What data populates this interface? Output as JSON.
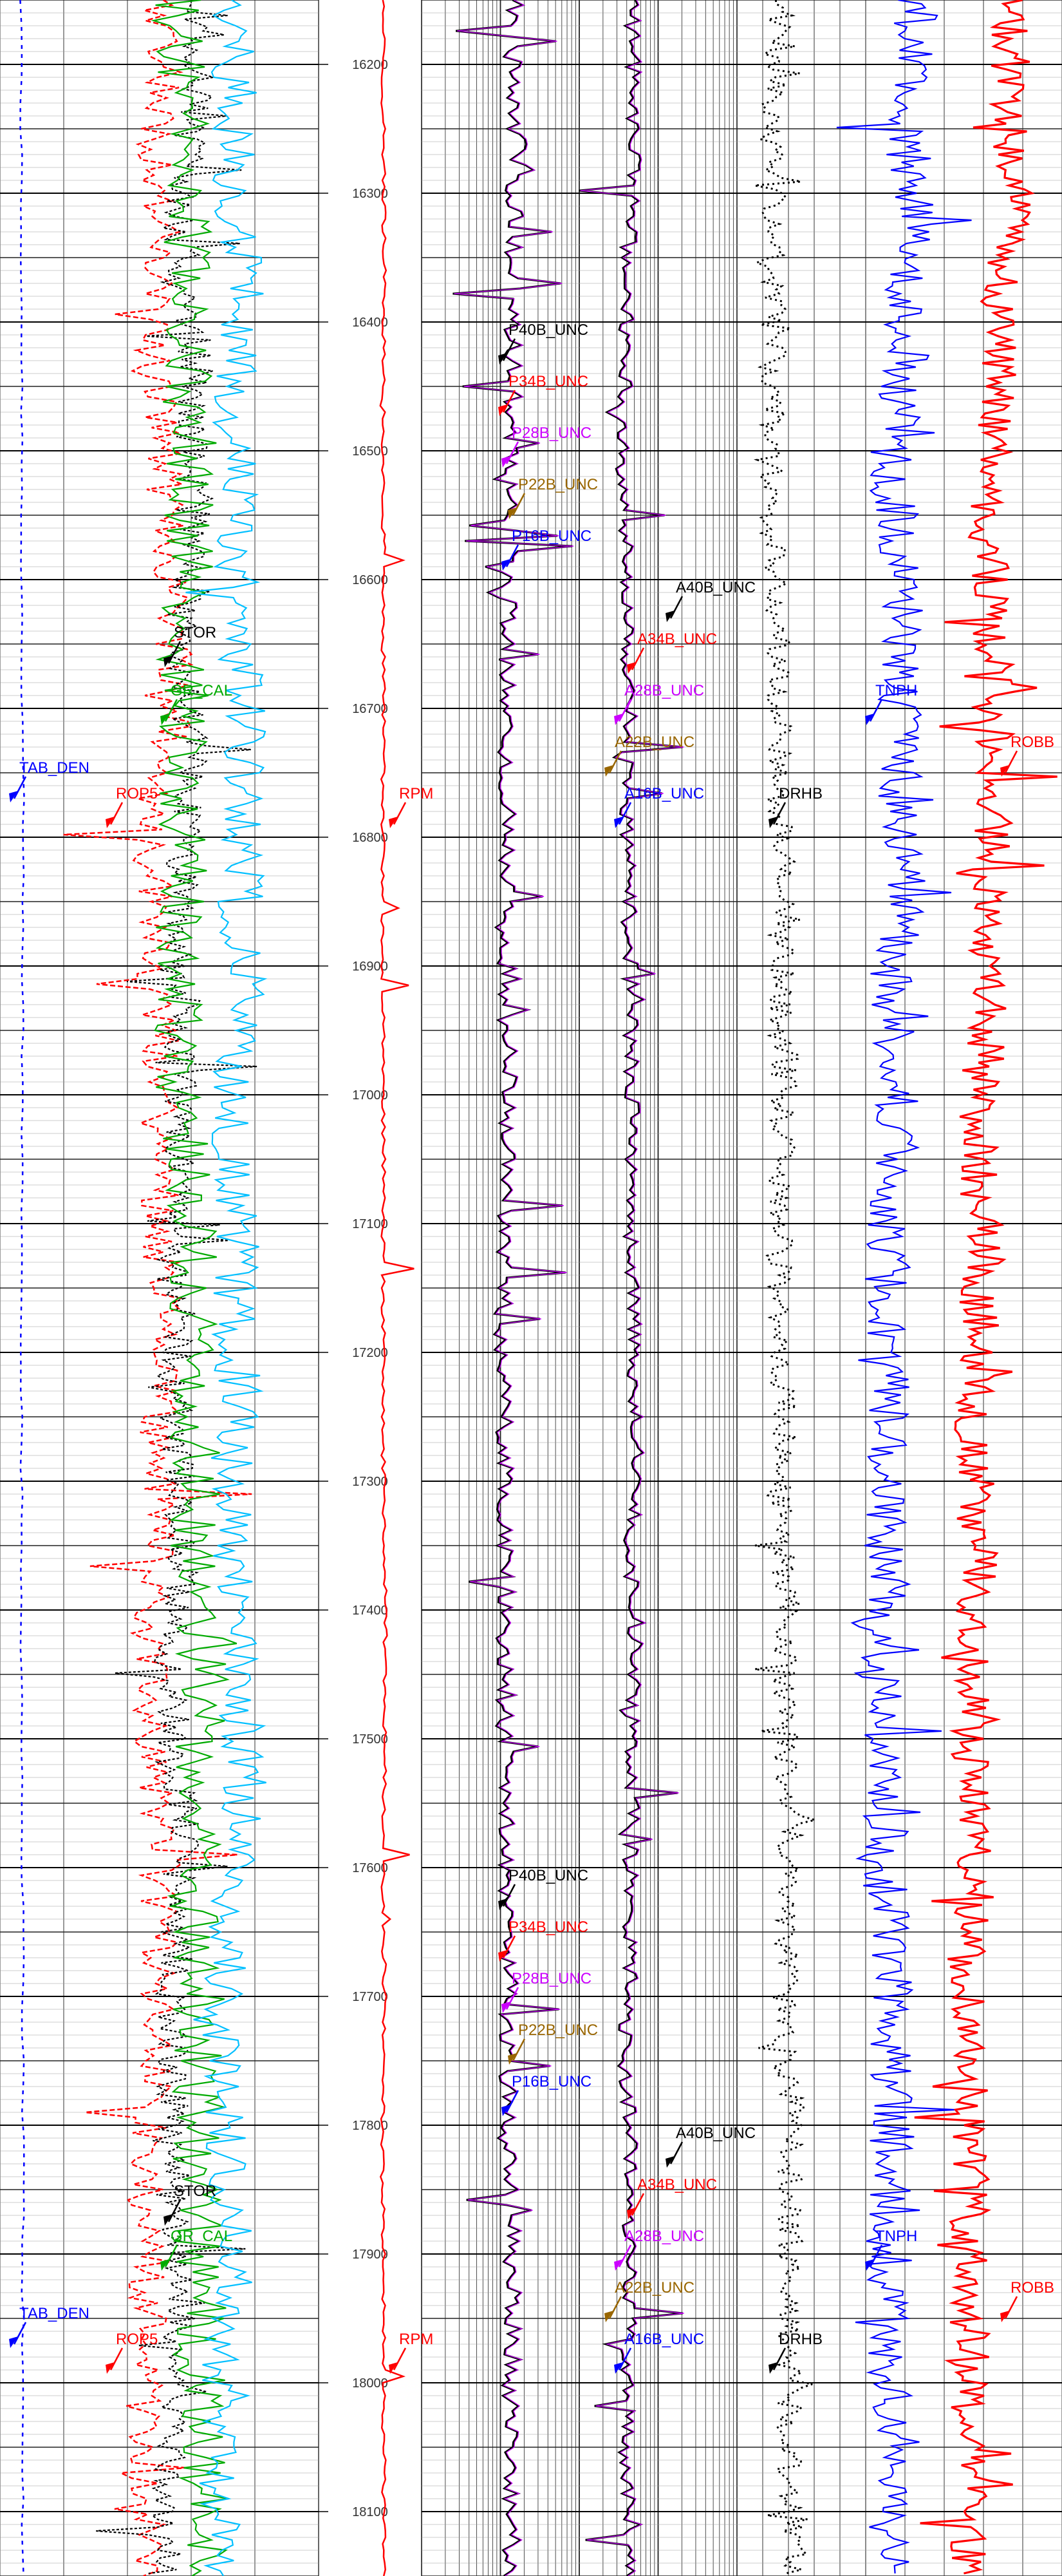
{
  "chart_data": {
    "type": "line",
    "depth_axis": {
      "range": [
        16150,
        18150
      ],
      "tick_labels": [
        "16200",
        "16300",
        "16400",
        "16500",
        "16600",
        "16700",
        "16800",
        "16900",
        "17000",
        "17100",
        "17200",
        "17300",
        "17400",
        "17500",
        "17600",
        "17700",
        "17800",
        "17900",
        "18000",
        "18100"
      ]
    },
    "tracks": [
      {
        "id": "track1",
        "curves": [
          {
            "name": "TAB_DEN",
            "color": "#0000ff",
            "style": "dashed"
          },
          {
            "name": "ROP5",
            "color": "#ff0000"
          },
          {
            "name": "STOR",
            "color": "#000000",
            "style": "dashed"
          },
          {
            "name": "GR_CAL",
            "color": "#00aa00"
          },
          {
            "name": "",
            "color": "#00bfff"
          }
        ],
        "labels": [
          {
            "text": "TAB_DEN",
            "depth": 16750,
            "color": "#0000ff"
          },
          {
            "text": "ROP5",
            "depth": 16770,
            "color": "#ff0000"
          },
          {
            "text": "STOR",
            "depth": 16645,
            "color": "#000000"
          },
          {
            "text": "GR_CAL",
            "depth": 16690,
            "color": "#00aa00"
          },
          {
            "text": "TAB_DEN",
            "depth": 17950,
            "color": "#0000ff"
          },
          {
            "text": "ROP5",
            "depth": 17970,
            "color": "#ff0000"
          },
          {
            "text": "STOR",
            "depth": 17855,
            "color": "#000000"
          },
          {
            "text": "GR_CAL",
            "depth": 17890,
            "color": "#00aa00"
          }
        ]
      },
      {
        "id": "depth",
        "curves": [
          {
            "name": "RPM",
            "color": "#ff0000"
          }
        ],
        "labels": [
          {
            "text": "RPM",
            "depth": 16770,
            "color": "#ff0000"
          },
          {
            "text": "RPM",
            "depth": 17970,
            "color": "#ff0000"
          }
        ]
      },
      {
        "id": "resistivity",
        "curves": [
          {
            "name": "P40B_UNC",
            "color": "#000000"
          },
          {
            "name": "P34B_UNC",
            "color": "#ff0000"
          },
          {
            "name": "P28B_UNC",
            "color": "#cc00ff"
          },
          {
            "name": "P22B_UNC",
            "color": "#996600"
          },
          {
            "name": "P16B_UNC",
            "color": "#0000ff"
          },
          {
            "name": "A40B_UNC",
            "color": "#000000"
          },
          {
            "name": "A34B_UNC",
            "color": "#ff0000"
          },
          {
            "name": "A28B_UNC",
            "color": "#cc00ff"
          },
          {
            "name": "A22B_UNC",
            "color": "#996600"
          },
          {
            "name": "A16B_UNC",
            "color": "#0000ff"
          }
        ],
        "labels": [
          {
            "text": "P40B_UNC",
            "depth": 16410,
            "color": "#000000"
          },
          {
            "text": "P34B_UNC",
            "depth": 16450,
            "color": "#ff0000"
          },
          {
            "text": "P28B_UNC",
            "depth": 16490,
            "color": "#cc00ff"
          },
          {
            "text": "P22B_UNC",
            "depth": 16530,
            "color": "#996600"
          },
          {
            "text": "P16B_UNC",
            "depth": 16570,
            "color": "#0000ff"
          },
          {
            "text": "A40B_UNC",
            "depth": 16610,
            "color": "#000000"
          },
          {
            "text": "A34B_UNC",
            "depth": 16650,
            "color": "#ff0000"
          },
          {
            "text": "A28B_UNC",
            "depth": 16690,
            "color": "#cc00ff"
          },
          {
            "text": "A22B_UNC",
            "depth": 16730,
            "color": "#996600"
          },
          {
            "text": "A16B_UNC",
            "depth": 16770,
            "color": "#0000ff"
          },
          {
            "text": "P40B_UNC",
            "depth": 17610,
            "color": "#000000"
          },
          {
            "text": "P34B_UNC",
            "depth": 17650,
            "color": "#ff0000"
          },
          {
            "text": "P28B_UNC",
            "depth": 17690,
            "color": "#cc00ff"
          },
          {
            "text": "P22B_UNC",
            "depth": 17730,
            "color": "#996600"
          },
          {
            "text": "P16B_UNC",
            "depth": 17770,
            "color": "#0000ff"
          },
          {
            "text": "A40B_UNC",
            "depth": 17810,
            "color": "#000000"
          },
          {
            "text": "A34B_UNC",
            "depth": 17850,
            "color": "#ff0000"
          },
          {
            "text": "A28B_UNC",
            "depth": 17890,
            "color": "#cc00ff"
          },
          {
            "text": "A22B_UNC",
            "depth": 17930,
            "color": "#996600"
          },
          {
            "text": "A16B_UNC",
            "depth": 17970,
            "color": "#0000ff"
          }
        ]
      },
      {
        "id": "density",
        "curves": [
          {
            "name": "DRHB",
            "color": "#000000",
            "style": "dotted"
          }
        ],
        "labels": [
          {
            "text": "DRHB",
            "depth": 16770,
            "color": "#000000"
          },
          {
            "text": "DRHB",
            "depth": 17970,
            "color": "#000000"
          }
        ]
      },
      {
        "id": "porosity",
        "curves": [
          {
            "name": "TNPH",
            "color": "#0000ff"
          },
          {
            "name": "ROBB",
            "color": "#ff0000"
          }
        ],
        "labels": [
          {
            "text": "TNPH",
            "depth": 16690,
            "color": "#0000ff"
          },
          {
            "text": "ROBB",
            "depth": 16730,
            "color": "#ff0000"
          },
          {
            "text": "TNPH",
            "depth": 17890,
            "color": "#0000ff"
          },
          {
            "text": "ROBB",
            "depth": 17930,
            "color": "#ff0000"
          }
        ]
      }
    ]
  }
}
